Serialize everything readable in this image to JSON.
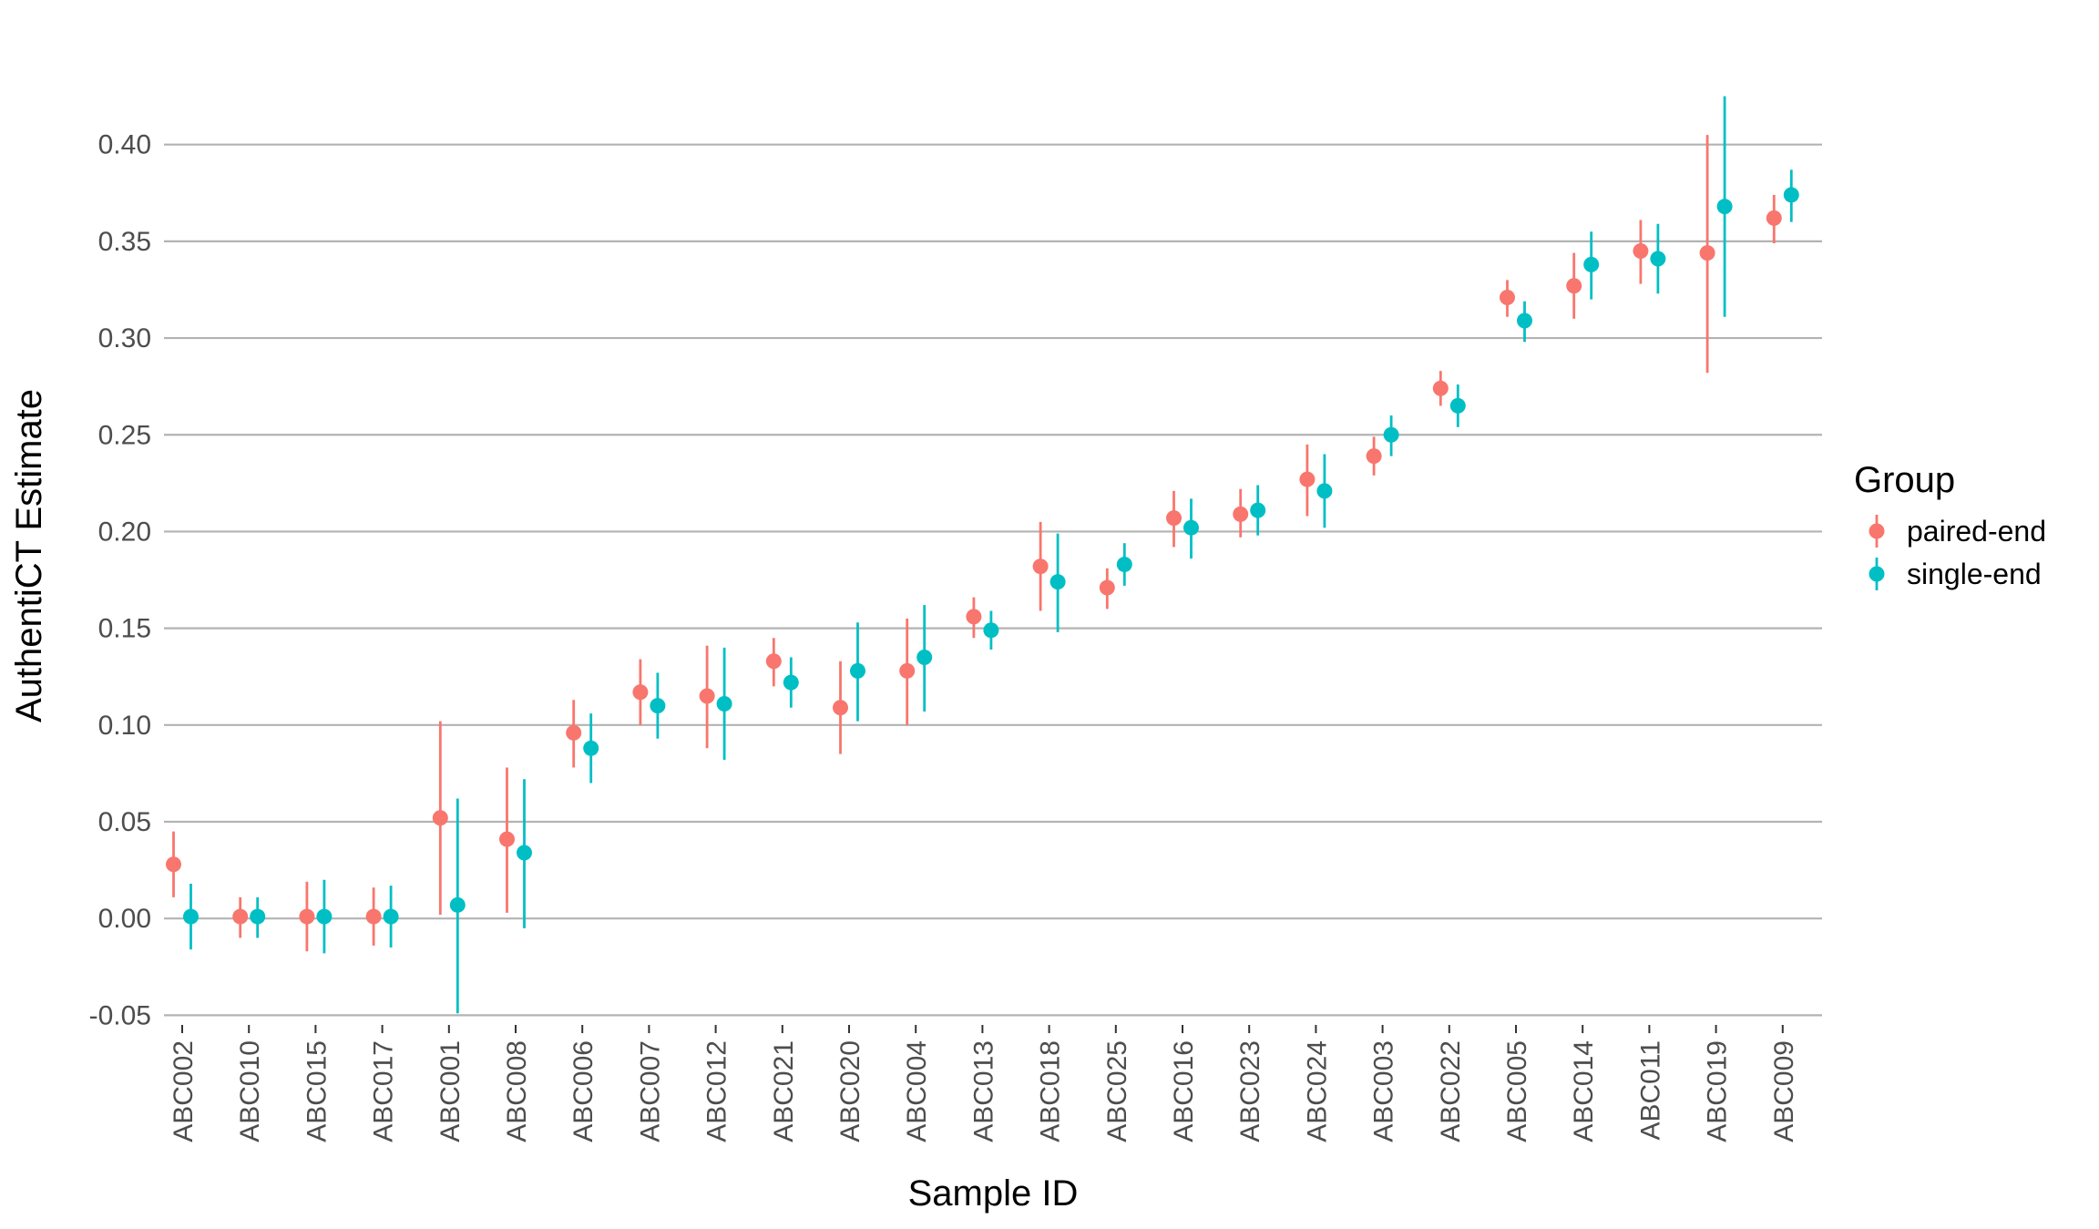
{
  "chart_data": {
    "type": "scatter",
    "subtype": "point-range",
    "title": "",
    "xlabel": "Sample ID",
    "ylabel": "AuthentiCT Estimate",
    "ylim": [
      -0.055,
      0.43
    ],
    "y_ticks": [
      -0.05,
      0.0,
      0.05,
      0.1,
      0.15,
      0.2,
      0.25,
      0.3,
      0.35,
      0.4
    ],
    "y_tick_labels": [
      "-0.05",
      "0.00",
      "0.05",
      "0.10",
      "0.15",
      "0.20",
      "0.25",
      "0.30",
      "0.35",
      "0.40"
    ],
    "grid": "horizontal major",
    "legend": {
      "title": "Group",
      "position": "right"
    },
    "categories": [
      "ABC002",
      "ABC010",
      "ABC015",
      "ABC017",
      "ABC001",
      "ABC008",
      "ABC006",
      "ABC007",
      "ABC012",
      "ABC021",
      "ABC020",
      "ABC004",
      "ABC013",
      "ABC018",
      "ABC025",
      "ABC016",
      "ABC023",
      "ABC024",
      "ABC003",
      "ABC022",
      "ABC005",
      "ABC014",
      "ABC011",
      "ABC019",
      "ABC009"
    ],
    "series": [
      {
        "name": "paired-end",
        "color": "#F8766D",
        "values": [
          0.028,
          0.001,
          0.001,
          0.001,
          0.052,
          0.041,
          0.096,
          0.117,
          0.115,
          0.133,
          0.109,
          0.128,
          0.156,
          0.182,
          0.171,
          0.207,
          0.209,
          0.227,
          0.239,
          0.274,
          0.321,
          0.327,
          0.345,
          0.344,
          0.362
        ],
        "lower": [
          0.011,
          -0.01,
          -0.017,
          -0.014,
          0.002,
          0.003,
          0.078,
          0.1,
          0.088,
          0.12,
          0.085,
          0.1,
          0.145,
          0.159,
          0.16,
          0.192,
          0.197,
          0.208,
          0.229,
          0.265,
          0.311,
          0.31,
          0.328,
          0.282,
          0.349
        ],
        "upper": [
          0.045,
          0.011,
          0.019,
          0.016,
          0.102,
          0.078,
          0.113,
          0.134,
          0.141,
          0.145,
          0.133,
          0.155,
          0.166,
          0.205,
          0.181,
          0.221,
          0.222,
          0.245,
          0.249,
          0.283,
          0.33,
          0.344,
          0.361,
          0.405,
          0.374
        ]
      },
      {
        "name": "single-end",
        "color": "#00BFC4",
        "values": [
          0.001,
          0.001,
          0.001,
          0.001,
          0.007,
          0.034,
          0.088,
          0.11,
          0.111,
          0.122,
          0.128,
          0.135,
          0.149,
          0.174,
          0.183,
          0.202,
          0.211,
          0.221,
          0.25,
          0.265,
          0.309,
          0.338,
          0.341,
          0.368,
          0.374
        ],
        "lower": [
          -0.016,
          -0.01,
          -0.018,
          -0.015,
          -0.049,
          -0.005,
          0.07,
          0.093,
          0.082,
          0.109,
          0.102,
          0.107,
          0.139,
          0.148,
          0.172,
          0.186,
          0.198,
          0.202,
          0.239,
          0.254,
          0.298,
          0.32,
          0.323,
          0.311,
          0.36
        ],
        "upper": [
          0.018,
          0.011,
          0.02,
          0.017,
          0.062,
          0.072,
          0.106,
          0.127,
          0.14,
          0.135,
          0.153,
          0.162,
          0.159,
          0.199,
          0.194,
          0.217,
          0.224,
          0.24,
          0.26,
          0.276,
          0.319,
          0.355,
          0.359,
          0.425,
          0.387
        ]
      }
    ]
  }
}
